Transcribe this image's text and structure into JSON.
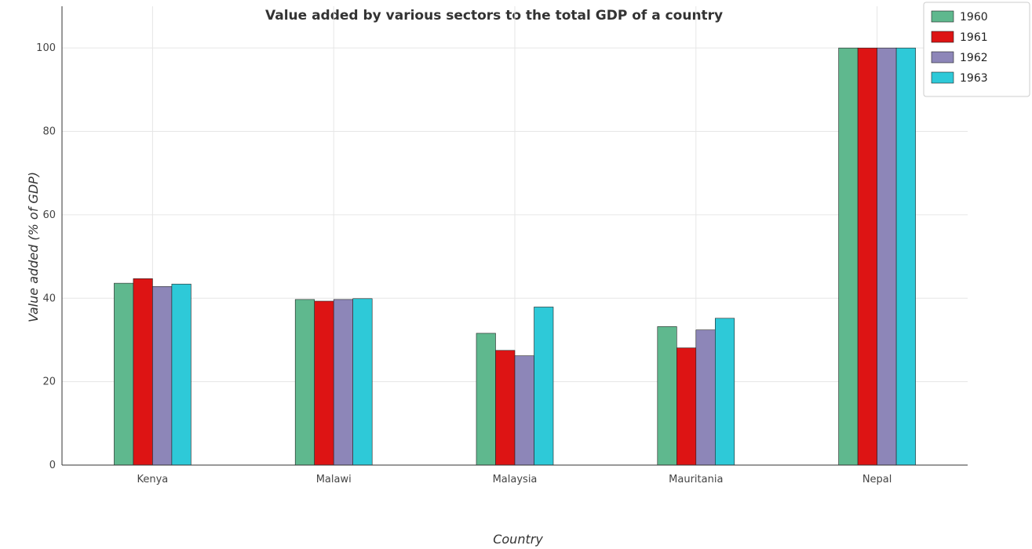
{
  "chart_data": {
    "type": "bar",
    "title": "Value added by various sectors to the total GDP of a country",
    "xlabel": "Country",
    "ylabel": "Value added (% of GDP)",
    "categories": [
      "Kenya",
      "Malawi",
      "Malaysia",
      "Mauritania",
      "Nepal"
    ],
    "series": [
      {
        "name": "1960",
        "color": "#5fb88e",
        "values": [
          43.6,
          39.7,
          31.6,
          33.2,
          100
        ]
      },
      {
        "name": "1961",
        "color": "#dd1414",
        "values": [
          44.7,
          39.3,
          27.5,
          28.1,
          100
        ]
      },
      {
        "name": "1962",
        "color": "#8d86b8",
        "values": [
          42.8,
          39.7,
          26.2,
          32.4,
          100
        ]
      },
      {
        "name": "1963",
        "color": "#2ec9d8",
        "values": [
          43.4,
          39.9,
          37.9,
          35.2,
          100
        ]
      }
    ],
    "ylim": [
      0,
      110
    ],
    "yticks": [
      0,
      20,
      40,
      60,
      80,
      100
    ],
    "grid": true,
    "legend_position": "top-right"
  }
}
